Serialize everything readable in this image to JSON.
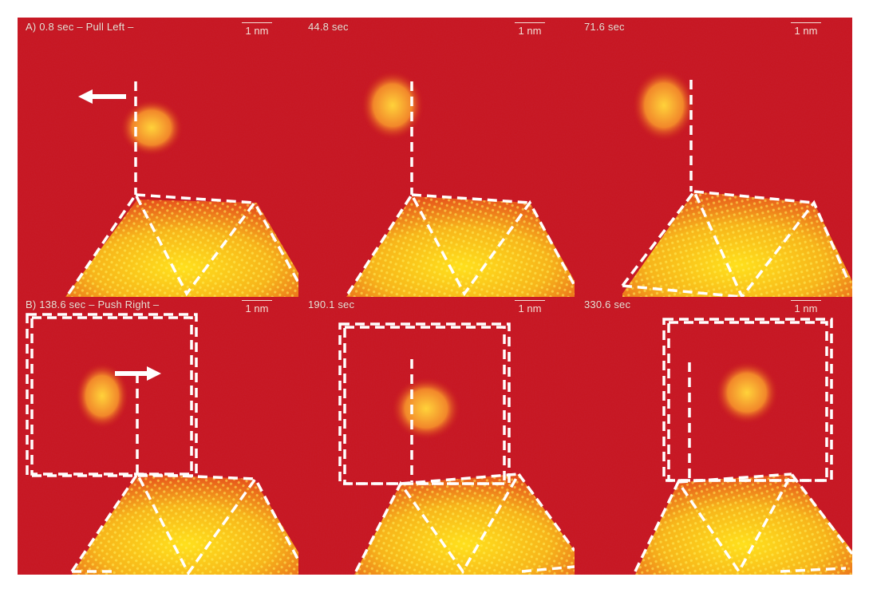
{
  "figure": {
    "colors": {
      "background": "#c8141c",
      "crystal": "#f7d11e",
      "particle": "#f5a626",
      "overlay": "#ffffff"
    },
    "row_a": {
      "panels": [
        {
          "time": "0.8 sec",
          "caption": "A) 0.8 sec  – Pull Left –",
          "scale": "1 nm"
        },
        {
          "time": "44.8 sec",
          "caption": "44.8 sec",
          "scale": "1 nm"
        },
        {
          "time": "71.6 sec",
          "caption": "71.6 sec",
          "scale": "1 nm"
        }
      ]
    },
    "row_b": {
      "panels": [
        {
          "time": "138.6 sec",
          "caption": "B) 138.6 sec  – Push Right –",
          "scale": "1 nm"
        },
        {
          "time": "190.1 sec",
          "caption": "190.1 sec",
          "scale": "1 nm"
        },
        {
          "time": "330.6 sec",
          "caption": "330.6 sec",
          "scale": "1 nm"
        }
      ]
    }
  }
}
